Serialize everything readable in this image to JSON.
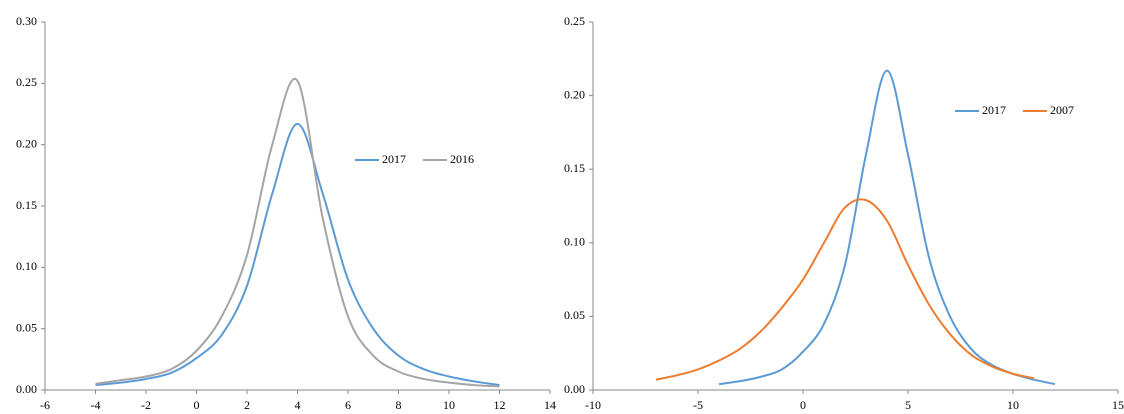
{
  "chart_data": [
    {
      "type": "line",
      "xlim": [
        -6,
        14
      ],
      "xticks": [
        -6,
        -4,
        -2,
        0,
        2,
        4,
        6,
        8,
        10,
        12,
        14
      ],
      "ylim": [
        0,
        0.3
      ],
      "yticks": [
        {
          "value": 0,
          "label": "0.00"
        },
        {
          "value": 0.05,
          "label": "0.05"
        },
        {
          "value": 0.1,
          "label": "0.10"
        },
        {
          "value": 0.15,
          "label": "0.15"
        },
        {
          "value": 0.2,
          "label": "0.20"
        },
        {
          "value": 0.25,
          "label": "0.25"
        },
        {
          "value": 0.3,
          "label": "0.30"
        }
      ],
      "legend": "right",
      "series": [
        {
          "name": "2017",
          "color": "#5b9bd5",
          "x": [
            -4,
            -3,
            -2,
            -1,
            0,
            1,
            2,
            3,
            4,
            5,
            6,
            7,
            8,
            9,
            10,
            11,
            12
          ],
          "values": [
            0.004,
            0.006,
            0.009,
            0.014,
            0.026,
            0.045,
            0.085,
            0.16,
            0.217,
            0.16,
            0.09,
            0.05,
            0.028,
            0.017,
            0.011,
            0.007,
            0.004
          ]
        },
        {
          "name": "2016",
          "color": "#a5a5a5",
          "x": [
            -4,
            -3,
            -2,
            -1,
            0,
            1,
            2,
            3,
            4,
            5,
            6,
            7,
            8,
            9,
            10,
            11,
            12
          ],
          "values": [
            0.005,
            0.008,
            0.011,
            0.017,
            0.032,
            0.06,
            0.11,
            0.2,
            0.252,
            0.14,
            0.06,
            0.028,
            0.015,
            0.009,
            0.006,
            0.004,
            0.003
          ]
        }
      ]
    },
    {
      "type": "line",
      "xlim": [
        -10,
        15
      ],
      "xticks": [
        -10,
        -5,
        0,
        5,
        10,
        15
      ],
      "ylim": [
        0,
        0.25
      ],
      "yticks": [
        {
          "value": 0,
          "label": "0.00"
        },
        {
          "value": 0.05,
          "label": "0.05"
        },
        {
          "value": 0.1,
          "label": "0.10"
        },
        {
          "value": 0.15,
          "label": "0.15"
        },
        {
          "value": 0.2,
          "label": "0.20"
        },
        {
          "value": 0.25,
          "label": "0.25"
        }
      ],
      "legend": "upper right",
      "series": [
        {
          "name": "2017",
          "color": "#5b9bd5",
          "x": [
            -4,
            -3,
            -2,
            -1,
            0,
            1,
            2,
            3,
            4,
            5,
            6,
            7,
            8,
            9,
            10,
            11,
            12
          ],
          "values": [
            0.004,
            0.006,
            0.009,
            0.014,
            0.026,
            0.045,
            0.085,
            0.16,
            0.217,
            0.16,
            0.09,
            0.05,
            0.028,
            0.017,
            0.011,
            0.007,
            0.004
          ]
        },
        {
          "name": "2007",
          "color": "#ed7d31",
          "x": [
            -7,
            -6,
            -5,
            -4,
            -3,
            -2,
            -1,
            0,
            1,
            2,
            3,
            4,
            5,
            6,
            7,
            8,
            9,
            10,
            11
          ],
          "values": [
            0.007,
            0.01,
            0.014,
            0.02,
            0.028,
            0.04,
            0.056,
            0.075,
            0.1,
            0.124,
            0.129,
            0.115,
            0.085,
            0.058,
            0.038,
            0.024,
            0.016,
            0.011,
            0.008
          ]
        }
      ]
    }
  ]
}
